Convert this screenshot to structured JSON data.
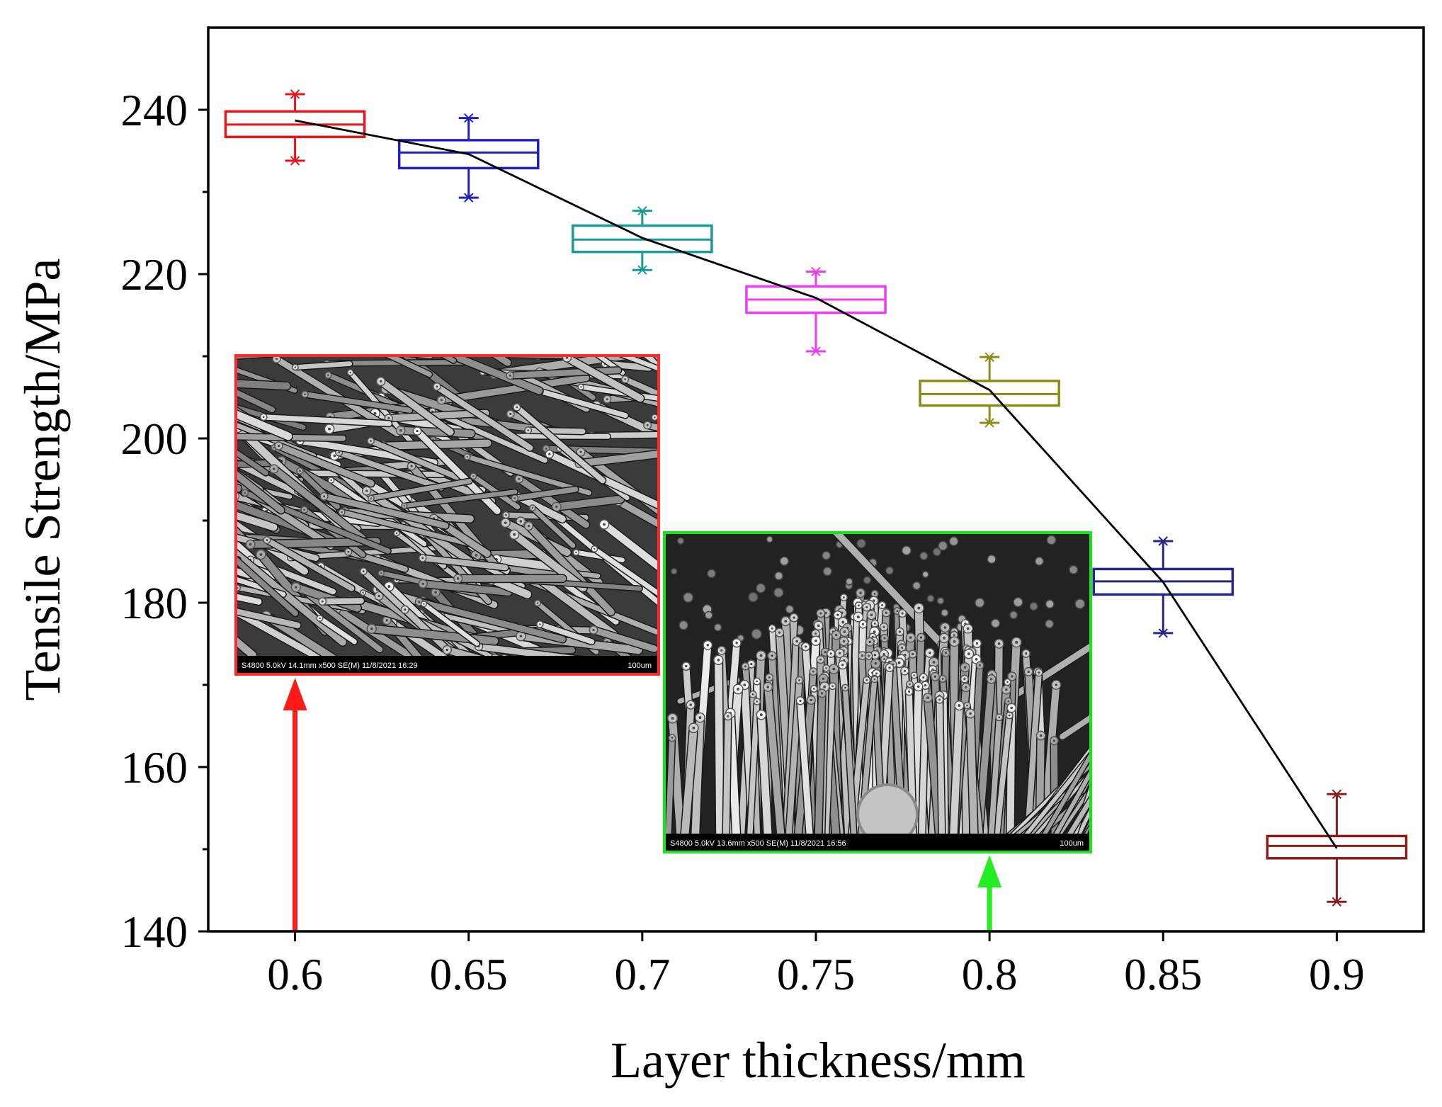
{
  "chart_data": {
    "type": "box",
    "title": "",
    "xlabel": "Layer thickness/mm",
    "ylabel": "Tensile Strength/MPa",
    "xlim": [
      0.575,
      0.925
    ],
    "ylim": [
      140,
      250
    ],
    "xticks": [
      0.6,
      0.65,
      0.7,
      0.75,
      0.8,
      0.85,
      0.9
    ],
    "xtick_labels": [
      "0.6",
      "0.65",
      "0.7",
      "0.75",
      "0.8",
      "0.85",
      "0.9"
    ],
    "yticks": [
      140,
      160,
      180,
      200,
      220,
      240
    ],
    "ytick_labels": [
      "140",
      "160",
      "180",
      "200",
      "220",
      "240"
    ],
    "y_minor_ticks": [
      150,
      170,
      190,
      210,
      230
    ],
    "grid": false,
    "boxes": [
      {
        "x": 0.6,
        "color": "#e8141c",
        "whisker_low": 233.8,
        "q1": 236.7,
        "median": 238.2,
        "q3": 239.8,
        "whisker_high": 241.9,
        "mean": 238.7
      },
      {
        "x": 0.65,
        "color": "#2020c0",
        "whisker_low": 229.3,
        "q1": 232.9,
        "median": 234.8,
        "q3": 236.3,
        "whisker_high": 239.0,
        "mean": 234.6
      },
      {
        "x": 0.7,
        "color": "#1a9a9a",
        "whisker_low": 220.5,
        "q1": 222.7,
        "median": 224.2,
        "q3": 225.9,
        "whisker_high": 227.7,
        "mean": 224.4
      },
      {
        "x": 0.75,
        "color": "#ee3cee",
        "whisker_low": 210.6,
        "q1": 215.3,
        "median": 216.9,
        "q3": 218.5,
        "whisker_high": 220.3,
        "mean": 217.1
      },
      {
        "x": 0.8,
        "color": "#8c8c14",
        "whisker_low": 201.9,
        "q1": 204.0,
        "median": 205.4,
        "q3": 207.0,
        "whisker_high": 209.9,
        "mean": 205.9
      },
      {
        "x": 0.85,
        "color": "#26268c",
        "whisker_low": 176.3,
        "q1": 181.0,
        "median": 182.6,
        "q3": 184.1,
        "whisker_high": 187.5,
        "mean": 182.5
      },
      {
        "x": 0.9,
        "color": "#8b1c1c",
        "whisker_low": 143.6,
        "q1": 148.9,
        "median": 150.4,
        "q3": 151.6,
        "whisker_high": 156.7,
        "mean": 150.1
      }
    ],
    "mean_line": {
      "color": "#000000",
      "x": [
        0.6,
        0.65,
        0.7,
        0.75,
        0.8,
        0.85,
        0.9
      ],
      "values": [
        238.7,
        234.6,
        224.4,
        217.1,
        205.9,
        182.5,
        150.1
      ]
    },
    "arrows": [
      {
        "x": 0.6,
        "color": "#ff1a1a"
      },
      {
        "x": 0.8,
        "color": "#22ee22"
      }
    ]
  },
  "insets": [
    {
      "border_color": "#ff2a2a",
      "info_text": "S4800 5.0kV 14.1mm x500 SE(M) 11/8/2021 16:29",
      "scale_text": "100um"
    },
    {
      "border_color": "#1ee01e",
      "info_text": "S4800 5.0kV 13.6mm x500 SE(M) 11/8/2021 16:56",
      "scale_text": "100um"
    }
  ]
}
